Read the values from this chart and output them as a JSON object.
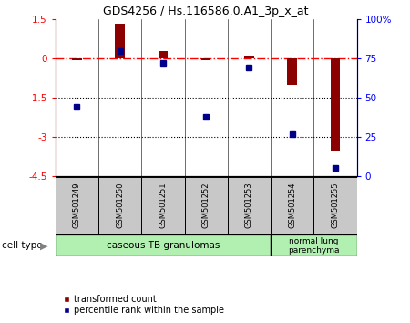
{
  "title": "GDS4256 / Hs.116586.0.A1_3p_x_at",
  "samples": [
    "GSM501249",
    "GSM501250",
    "GSM501251",
    "GSM501252",
    "GSM501253",
    "GSM501254",
    "GSM501255"
  ],
  "red_values": [
    -0.05,
    1.32,
    0.28,
    -0.05,
    0.1,
    -1.02,
    -3.52
  ],
  "blue_values": [
    44,
    80,
    72,
    38,
    69,
    27,
    5
  ],
  "ylim_left": [
    -4.5,
    1.5
  ],
  "ylim_right": [
    0,
    100
  ],
  "yticks_left": [
    1.5,
    0,
    -1.5,
    -3,
    -4.5
  ],
  "yticks_right": [
    100,
    75,
    50,
    25,
    0
  ],
  "ytick_labels_left": [
    "1.5",
    "0",
    "-1.5",
    "-3",
    "-4.5"
  ],
  "ytick_labels_right": [
    "100%",
    "75",
    "50",
    "25",
    "0"
  ],
  "hlines_dotted": [
    -1.5,
    -3.0
  ],
  "hline_dashdot": 0,
  "bar_color": "#8B0000",
  "square_color": "#00008B",
  "group1_label": "caseous TB granulomas",
  "group2_label": "normal lung\nparenchyma",
  "group1_bg": "#b2f0b2",
  "group2_bg": "#b2f0b2",
  "cell_type_label": "cell type",
  "legend_red": "transformed count",
  "legend_blue": "percentile rank within the sample",
  "bar_width": 0.22,
  "tick_area_bg": "#C8C8C8"
}
